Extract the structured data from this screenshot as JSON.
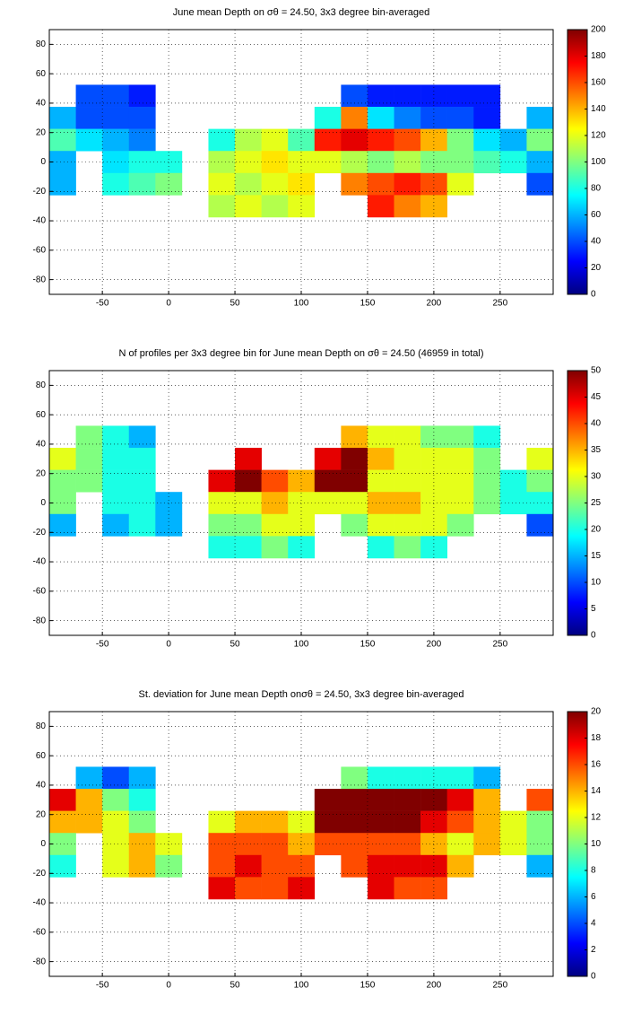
{
  "chart_data": [
    {
      "type": "map-heatmap",
      "title": "June mean Depth on σθ = 24.50, 3x3 degree bin-averaged",
      "cmap": "jet",
      "grid": true,
      "x": [
        -80,
        -60,
        -40,
        -20,
        0,
        20,
        40,
        60,
        80,
        100,
        120,
        140,
        160,
        180,
        200,
        220,
        240,
        260,
        280
      ],
      "y": [
        45,
        30,
        15,
        0,
        -15,
        -30
      ],
      "z": [
        [
          null,
          40,
          40,
          30,
          null,
          null,
          null,
          null,
          null,
          null,
          null,
          40,
          30,
          30,
          30,
          30,
          30,
          null,
          null
        ],
        [
          60,
          40,
          40,
          40,
          null,
          null,
          null,
          null,
          null,
          null,
          80,
          150,
          70,
          50,
          40,
          40,
          30,
          null,
          60
        ],
        [
          90,
          70,
          60,
          50,
          null,
          null,
          80,
          110,
          120,
          90,
          170,
          180,
          170,
          160,
          140,
          100,
          70,
          60,
          100
        ],
        [
          60,
          null,
          70,
          80,
          80,
          null,
          110,
          120,
          130,
          120,
          120,
          110,
          100,
          110,
          100,
          100,
          90,
          80,
          60
        ],
        [
          60,
          null,
          80,
          90,
          100,
          null,
          120,
          110,
          120,
          130,
          null,
          150,
          160,
          170,
          160,
          120,
          null,
          null,
          40
        ],
        [
          null,
          null,
          null,
          null,
          null,
          null,
          110,
          120,
          110,
          120,
          null,
          null,
          170,
          150,
          140,
          null,
          null,
          null,
          null
        ]
      ],
      "xlim": [
        -90,
        290
      ],
      "xticks": [
        -50,
        0,
        50,
        100,
        150,
        200,
        250
      ],
      "ylim": [
        -90,
        90
      ],
      "yticks": [
        -80,
        -60,
        -40,
        -20,
        0,
        20,
        40,
        60,
        80
      ],
      "clim": [
        0,
        200
      ],
      "cticks": [
        0,
        20,
        40,
        60,
        80,
        100,
        120,
        140,
        160,
        180,
        200
      ]
    },
    {
      "type": "map-heatmap",
      "title": "N of profiles per 3x3 degree bin for June mean Depth on σθ = 24.50 (46959 in total)",
      "cmap": "jet",
      "grid": true,
      "x": [
        -80,
        -60,
        -40,
        -20,
        0,
        20,
        40,
        60,
        80,
        100,
        120,
        140,
        160,
        180,
        200,
        220,
        240,
        260,
        280
      ],
      "y": [
        45,
        30,
        15,
        0,
        -15,
        -30
      ],
      "z": [
        [
          null,
          25,
          20,
          15,
          null,
          null,
          null,
          null,
          null,
          null,
          null,
          35,
          30,
          30,
          25,
          25,
          20,
          null,
          null
        ],
        [
          30,
          25,
          20,
          20,
          null,
          null,
          null,
          45,
          null,
          null,
          45,
          50,
          35,
          30,
          30,
          30,
          25,
          null,
          30
        ],
        [
          25,
          25,
          20,
          20,
          null,
          null,
          45,
          50,
          40,
          35,
          50,
          50,
          30,
          30,
          30,
          30,
          25,
          20,
          25
        ],
        [
          25,
          null,
          20,
          20,
          15,
          null,
          30,
          30,
          35,
          30,
          30,
          30,
          35,
          35,
          30,
          30,
          25,
          20,
          20
        ],
        [
          15,
          null,
          15,
          20,
          15,
          null,
          25,
          25,
          30,
          30,
          null,
          25,
          30,
          30,
          30,
          25,
          null,
          null,
          10
        ],
        [
          null,
          null,
          null,
          null,
          null,
          null,
          20,
          20,
          25,
          20,
          null,
          null,
          20,
          25,
          20,
          null,
          null,
          null,
          null
        ]
      ],
      "xlim": [
        -90,
        290
      ],
      "xticks": [
        -50,
        0,
        50,
        100,
        150,
        200,
        250
      ],
      "ylim": [
        -90,
        90
      ],
      "yticks": [
        -80,
        -60,
        -40,
        -20,
        0,
        20,
        40,
        60,
        80
      ],
      "clim": [
        0,
        50
      ],
      "cticks": [
        0,
        5,
        10,
        15,
        20,
        25,
        30,
        35,
        40,
        45,
        50
      ]
    },
    {
      "type": "map-heatmap",
      "title": "St. deviation for June mean Depth onσθ = 24.50, 3x3 degree bin-averaged",
      "cmap": "jet",
      "grid": true,
      "x": [
        -80,
        -60,
        -40,
        -20,
        0,
        20,
        40,
        60,
        80,
        100,
        120,
        140,
        160,
        180,
        200,
        220,
        240,
        260,
        280
      ],
      "y": [
        45,
        30,
        15,
        0,
        -15,
        -30
      ],
      "z": [
        [
          null,
          6,
          4,
          6,
          null,
          null,
          null,
          null,
          null,
          null,
          null,
          10,
          8,
          8,
          8,
          8,
          6,
          null,
          null
        ],
        [
          18,
          14,
          10,
          8,
          null,
          null,
          null,
          null,
          null,
          null,
          20,
          20,
          20,
          20,
          20,
          18,
          14,
          null,
          16
        ],
        [
          14,
          14,
          12,
          10,
          null,
          null,
          12,
          14,
          14,
          12,
          20,
          20,
          20,
          20,
          18,
          16,
          14,
          12,
          10
        ],
        [
          10,
          null,
          12,
          14,
          12,
          null,
          16,
          16,
          16,
          14,
          16,
          16,
          16,
          16,
          14,
          12,
          14,
          12,
          10
        ],
        [
          8,
          null,
          12,
          14,
          10,
          null,
          16,
          18,
          16,
          16,
          null,
          16,
          18,
          18,
          18,
          14,
          null,
          null,
          6
        ],
        [
          null,
          null,
          null,
          null,
          null,
          null,
          18,
          16,
          16,
          18,
          null,
          null,
          18,
          16,
          16,
          null,
          null,
          null,
          null
        ]
      ],
      "xlim": [
        -90,
        290
      ],
      "xticks": [
        -50,
        0,
        50,
        100,
        150,
        200,
        250
      ],
      "ylim": [
        -90,
        90
      ],
      "yticks": [
        -80,
        -60,
        -40,
        -20,
        0,
        20,
        40,
        60,
        80
      ],
      "clim": [
        0,
        20
      ],
      "cticks": [
        0,
        2,
        4,
        6,
        8,
        10,
        12,
        14,
        16,
        18,
        20
      ]
    }
  ]
}
